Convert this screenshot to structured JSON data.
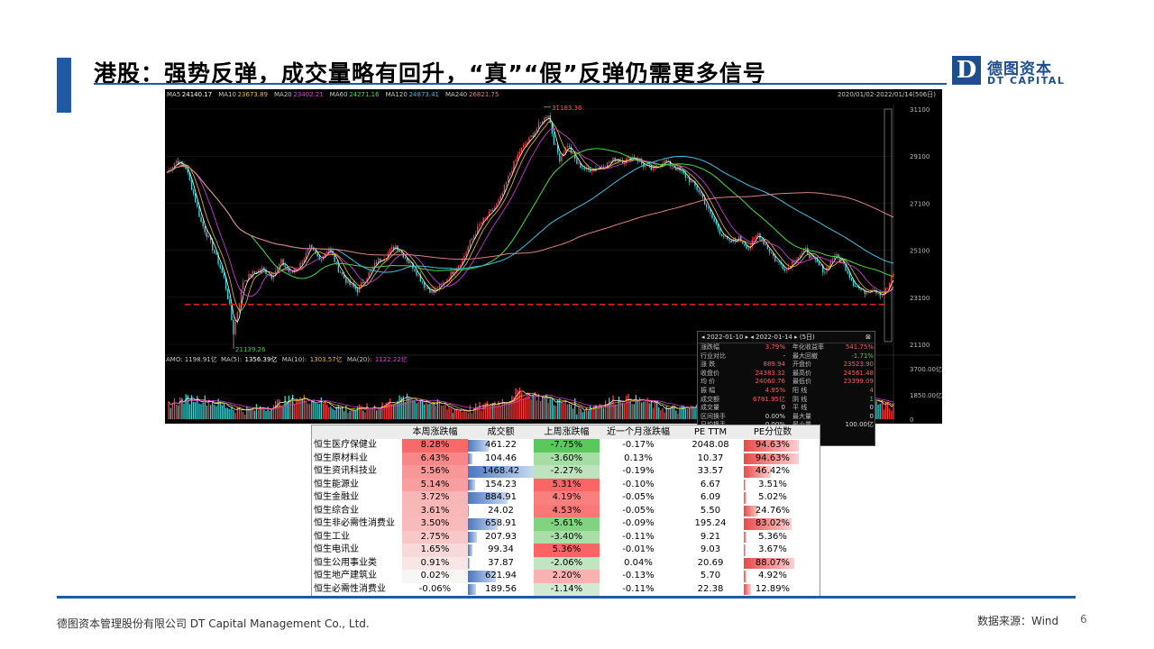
{
  "header": {
    "title": "港股：强势反弹，成交量略有回升，“真”“假”反弹仍需更多信号",
    "logo_mark": "D",
    "logo_cn": "德图资本",
    "logo_en": "DT CAPITAL"
  },
  "chart_data": {
    "type": "line",
    "ma_legend": [
      {
        "name": "MA5",
        "value": "24140.17",
        "color": "#ffffff"
      },
      {
        "name": "MA10",
        "value": "23673.89",
        "color": "#f0c020"
      },
      {
        "name": "MA20",
        "value": "23402.21",
        "color": "#e040e0"
      },
      {
        "name": "MA60",
        "value": "24271.16",
        "color": "#40e040"
      },
      {
        "name": "MA120",
        "value": "24873.41",
        "color": "#40c0e0"
      },
      {
        "name": "MA240",
        "value": "26821.75",
        "color": "#e08080"
      }
    ],
    "date_range": "2020/01/02-2022/01/14(506日)",
    "ylim": [
      21100,
      31100
    ],
    "y_ticks": [
      "31100",
      "29100",
      "27100",
      "25100",
      "23100",
      "21100"
    ],
    "annotations": {
      "high": "31183.36",
      "low": "21139.26"
    },
    "support_level": 23100,
    "index_path": [
      [
        0,
        28400
      ],
      [
        5,
        28900
      ],
      [
        10,
        28600
      ],
      [
        14,
        27500
      ],
      [
        18,
        26300
      ],
      [
        22,
        25600
      ],
      [
        26,
        24800
      ],
      [
        30,
        23900
      ],
      [
        33,
        22700
      ],
      [
        35,
        21600
      ],
      [
        37,
        22500
      ],
      [
        40,
        23800
      ],
      [
        45,
        24100
      ],
      [
        50,
        24300
      ],
      [
        55,
        24000
      ],
      [
        60,
        24600
      ],
      [
        65,
        24100
      ],
      [
        70,
        24500
      ],
      [
        75,
        25200
      ],
      [
        80,
        24700
      ],
      [
        85,
        25200
      ],
      [
        90,
        24300
      ],
      [
        95,
        23700
      ],
      [
        100,
        23400
      ],
      [
        105,
        24000
      ],
      [
        110,
        24600
      ],
      [
        115,
        24900
      ],
      [
        120,
        25300
      ],
      [
        125,
        24800
      ],
      [
        130,
        24300
      ],
      [
        135,
        23600
      ],
      [
        140,
        23300
      ],
      [
        145,
        23700
      ],
      [
        150,
        24200
      ],
      [
        155,
        24700
      ],
      [
        160,
        25600
      ],
      [
        165,
        26300
      ],
      [
        170,
        26700
      ],
      [
        175,
        27300
      ],
      [
        180,
        28400
      ],
      [
        185,
        29300
      ],
      [
        190,
        29800
      ],
      [
        195,
        30400
      ],
      [
        200,
        30900
      ],
      [
        203,
        29700
      ],
      [
        206,
        29000
      ],
      [
        210,
        29600
      ],
      [
        215,
        28800
      ],
      [
        220,
        28500
      ],
      [
        225,
        28600
      ],
      [
        230,
        28700
      ],
      [
        235,
        29000
      ],
      [
        240,
        28900
      ],
      [
        245,
        29100
      ],
      [
        250,
        28700
      ],
      [
        255,
        28500
      ],
      [
        260,
        28900
      ],
      [
        265,
        28700
      ],
      [
        270,
        28400
      ],
      [
        275,
        28000
      ],
      [
        280,
        27500
      ],
      [
        285,
        26600
      ],
      [
        290,
        25900
      ],
      [
        295,
        25400
      ],
      [
        300,
        25600
      ],
      [
        305,
        25200
      ],
      [
        310,
        25800
      ],
      [
        315,
        25200
      ],
      [
        320,
        24600
      ],
      [
        325,
        24300
      ],
      [
        330,
        24800
      ],
      [
        335,
        25100
      ],
      [
        340,
        24600
      ],
      [
        345,
        24200
      ],
      [
        350,
        24900
      ],
      [
        355,
        24500
      ],
      [
        360,
        23700
      ],
      [
        365,
        23300
      ],
      [
        370,
        23500
      ],
      [
        375,
        23200
      ],
      [
        378,
        23500
      ],
      [
        381,
        24100
      ]
    ],
    "volume_label": "AMO: 1198.91亿",
    "volume_ma": [
      {
        "name": "MA(5)",
        "value": "1356.39亿",
        "color": "#ffffff"
      },
      {
        "name": "MA(10)",
        "value": "1303.57亿",
        "color": "#f0c020"
      },
      {
        "name": "MA(20)",
        "value": "1122.22亿",
        "color": "#e040e0"
      }
    ],
    "volume_ticks": [
      "3700.00亿",
      "1850.00亿",
      "0"
    ]
  },
  "popup": {
    "start_date": "2022-01-10",
    "end_date": "2022-01-14",
    "days": "(5日)",
    "rows": [
      {
        "l1": "涨跌幅",
        "v1": "3.79%",
        "l2": "年化收益率",
        "v2": "541.75%",
        "c2": "r"
      },
      {
        "l1": "行业对比",
        "v1": "-",
        "l2": "最大回撤",
        "v2": "-1.71%",
        "c2": "g"
      },
      {
        "l1": "涨 跌",
        "v1": "889.94",
        "l2": "开盘价",
        "v2": "23523.90",
        "c2": "r"
      },
      {
        "l1": "收盘价",
        "v1": "24383.32",
        "l2": "最高价",
        "v2": "24561.48",
        "c2": "r"
      },
      {
        "l1": "均 价",
        "v1": "24060.76",
        "l2": "最低价",
        "v2": "23399.09",
        "c2": "r"
      },
      {
        "l1": "振 幅",
        "v1": "4.95%",
        "l2": "阳 线",
        "v2": "4",
        "c2": "r"
      },
      {
        "l1": "成交额",
        "v1": "6781.95亿",
        "l2": "阴 线",
        "v2": "1",
        "c2": "g"
      },
      {
        "l1": "成交量",
        "v1": "0",
        "l2": "平 线",
        "v2": "0",
        "c2": "w"
      },
      {
        "l1": "区间换手",
        "v1": "0.00%",
        "l2": "最大量",
        "v2": "0",
        "c2": "w"
      },
      {
        "l1": "日均换手",
        "v1": "0.00%",
        "l2": "最小量",
        "v2": "100.00亿",
        "c2": "w"
      }
    ]
  },
  "table": {
    "headers": [
      "",
      "本周涨跌幅",
      "成交额",
      "上周涨跌幅",
      "近一个月涨跌幅",
      "PE TTM",
      "PE分位数"
    ],
    "rows": [
      [
        "恒生医疗保健业",
        "8.28%",
        "461.22",
        "-7.75%",
        "-0.17%",
        "2048.08",
        "94.63%"
      ],
      [
        "恒生原材料业",
        "6.43%",
        "104.46",
        "-3.60%",
        "0.13%",
        "10.37",
        "94.63%"
      ],
      [
        "恒生资讯科技业",
        "5.56%",
        "1468.42",
        "-2.27%",
        "-0.19%",
        "33.57",
        "46.42%"
      ],
      [
        "恒生能源业",
        "5.14%",
        "154.23",
        "5.31%",
        "-0.10%",
        "6.67",
        "3.51%"
      ],
      [
        "恒生金融业",
        "3.72%",
        "884.91",
        "4.19%",
        "-0.05%",
        "6.09",
        "5.02%"
      ],
      [
        "恒生综合业",
        "3.61%",
        "24.02",
        "4.53%",
        "-0.05%",
        "5.50",
        "24.76%"
      ],
      [
        "恒生非必需性消费业",
        "3.50%",
        "658.91",
        "-5.61%",
        "-0.09%",
        "195.24",
        "83.02%"
      ],
      [
        "恒生工业",
        "2.75%",
        "207.93",
        "-3.40%",
        "-0.11%",
        "9.21",
        "5.36%"
      ],
      [
        "恒生电讯业",
        "1.65%",
        "99.34",
        "5.36%",
        "-0.01%",
        "9.03",
        "3.67%"
      ],
      [
        "恒生公用事业类",
        "0.91%",
        "37.87",
        "-2.06%",
        "0.04%",
        "20.69",
        "88.07%"
      ],
      [
        "恒生地产建筑业",
        "0.02%",
        "621.94",
        "2.20%",
        "-0.13%",
        "5.70",
        "4.92%"
      ],
      [
        "恒生必需性消费业",
        "-0.06%",
        "189.56",
        "-1.14%",
        "-0.11%",
        "22.38",
        "12.89%"
      ]
    ]
  },
  "footer": {
    "company": "德图资本管理股份有限公司 DT Capital Management Co., Ltd.",
    "source": "数据来源：Wind",
    "page": "6"
  }
}
